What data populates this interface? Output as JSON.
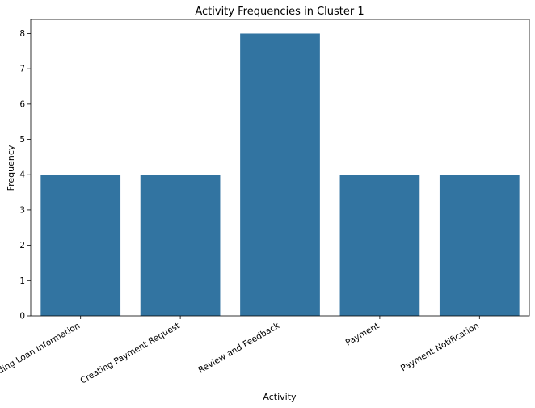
{
  "chart_data": {
    "type": "bar",
    "title": "Activity Frequencies in Cluster 1",
    "xlabel": "Activity",
    "ylabel": "Frequency",
    "categories": [
      "Reading Loan Information",
      "Creating Payment Request",
      "Review and Feedback",
      "Payment",
      "Payment Notification"
    ],
    "values": [
      4,
      4,
      8,
      4,
      4
    ],
    "ylim": [
      0,
      8.4
    ],
    "yticks": [
      0,
      1,
      2,
      3,
      4,
      5,
      6,
      7,
      8
    ],
    "xtick_rotation": 30,
    "grid": false,
    "bar_color": "#3274a1"
  }
}
